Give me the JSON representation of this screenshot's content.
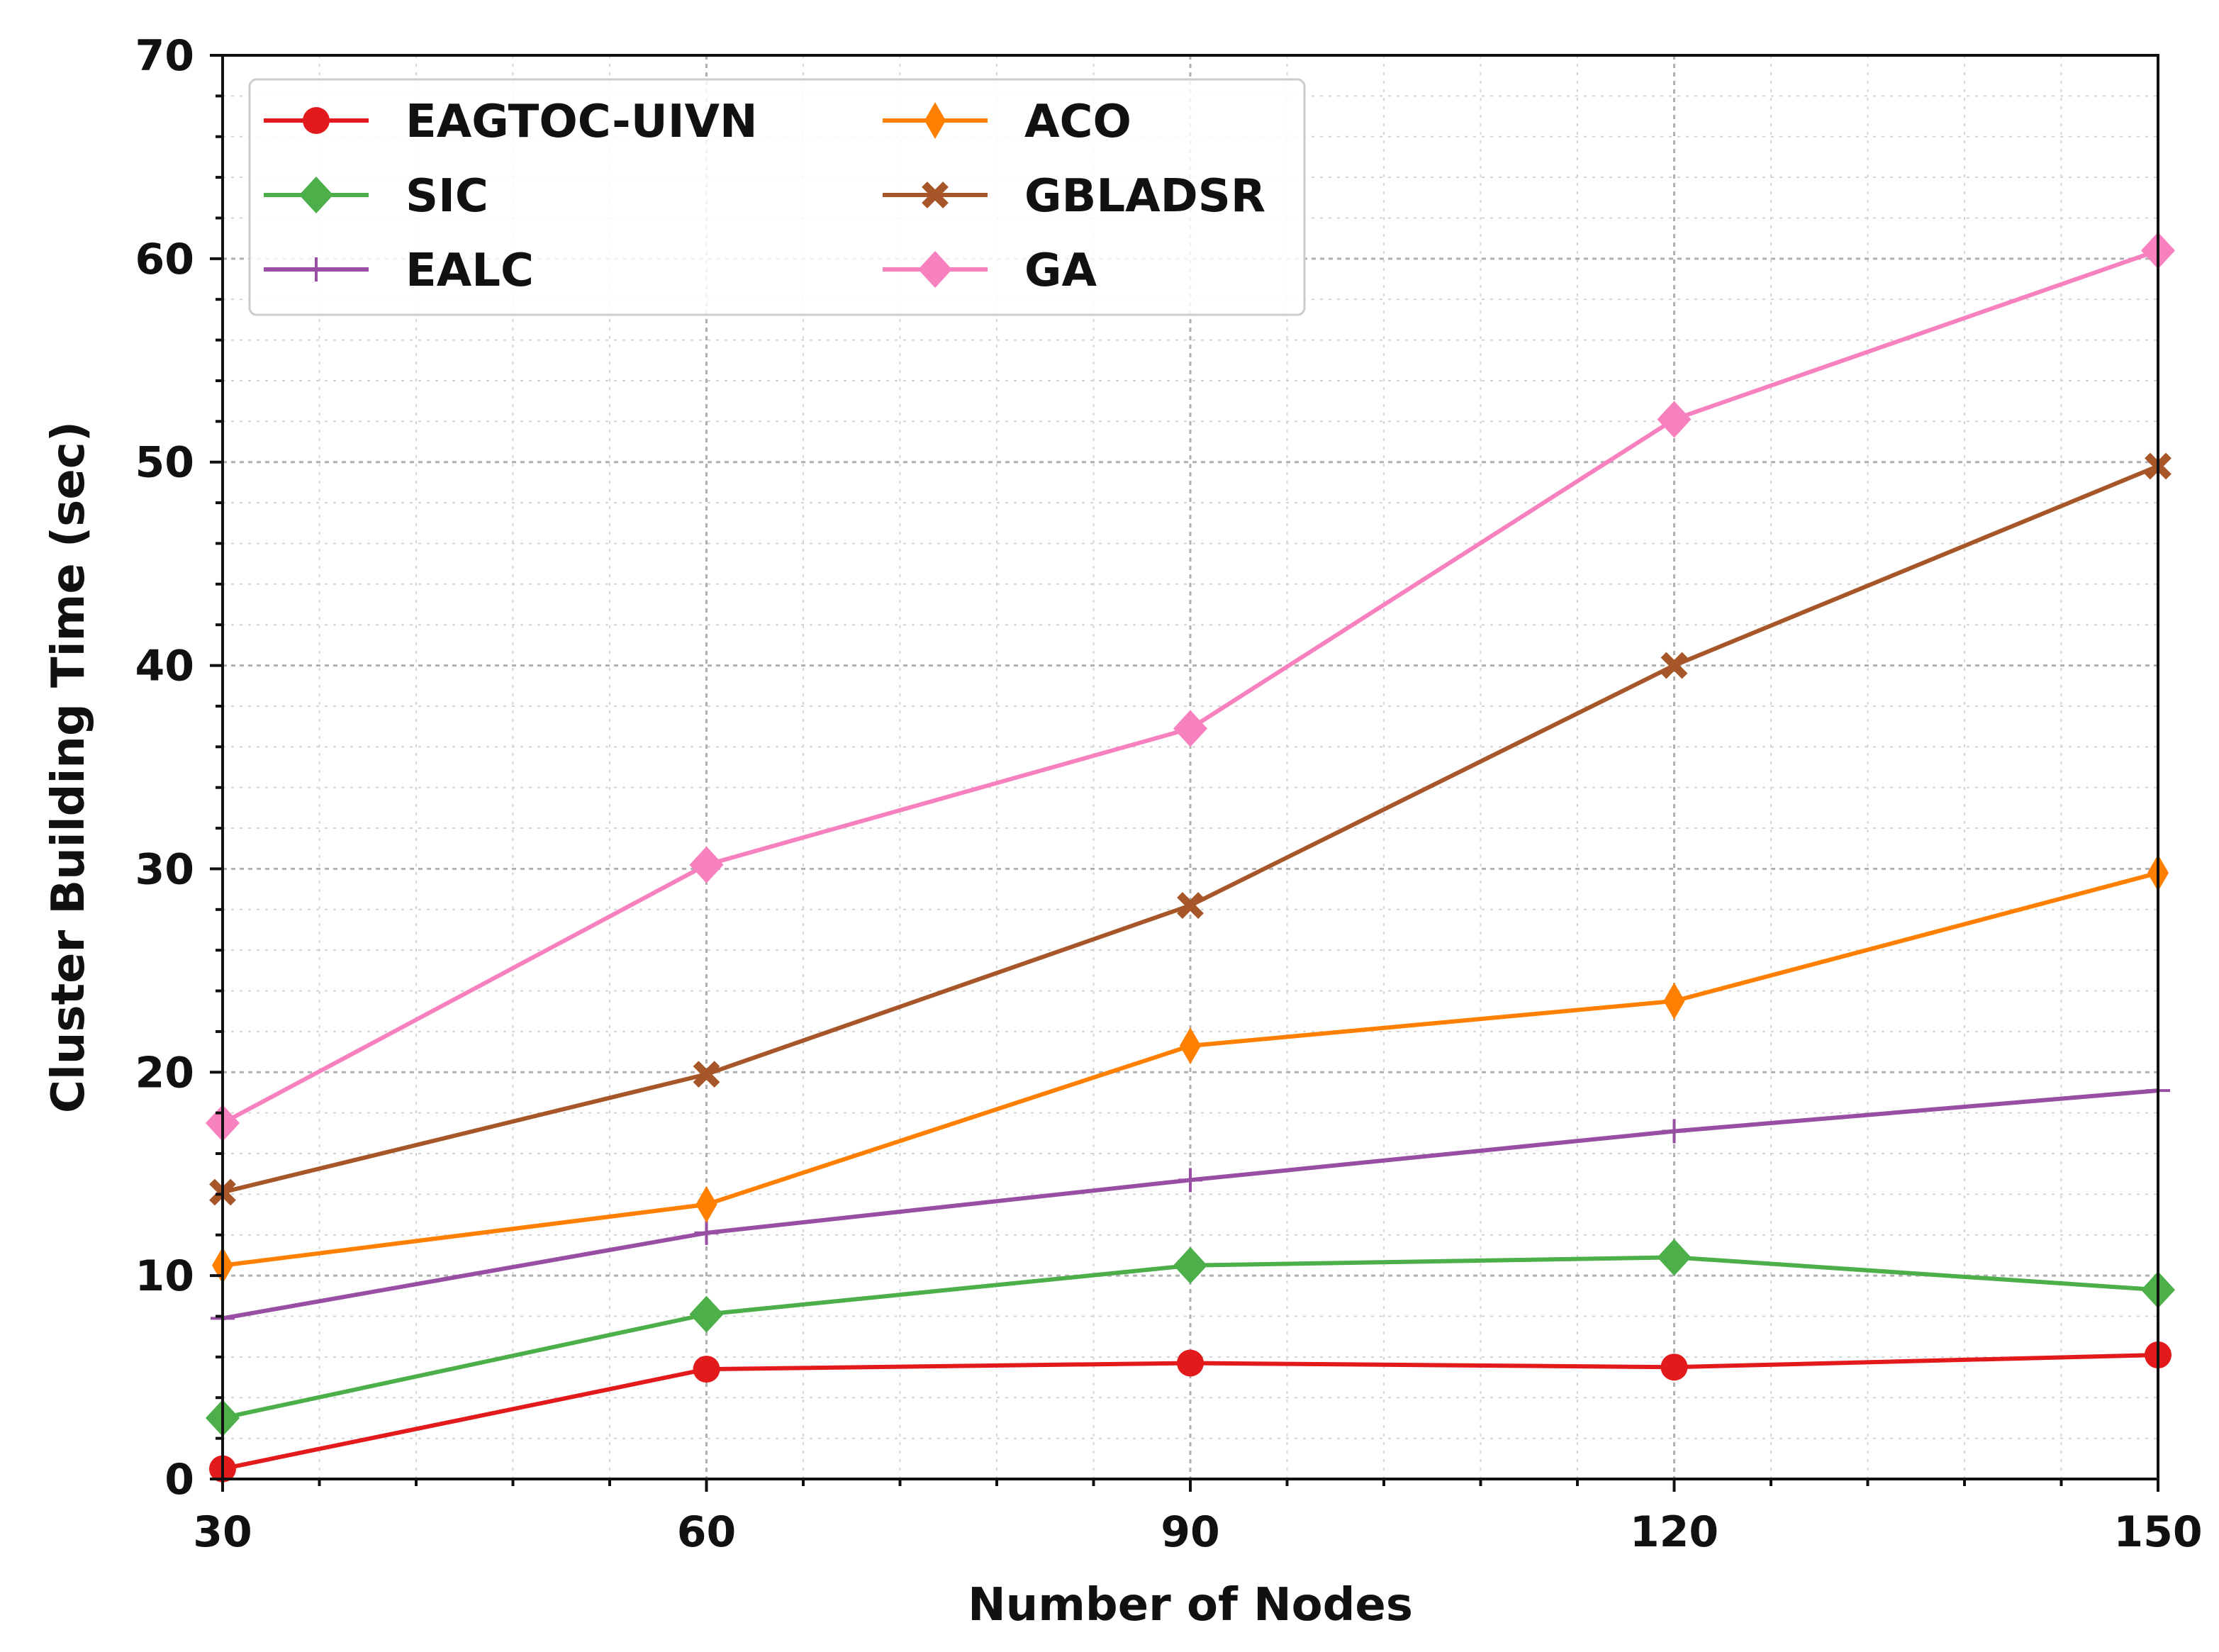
{
  "chart_data": {
    "type": "line",
    "title": "",
    "xlabel": "Number of Nodes",
    "ylabel": "Cluster Building Time (sec)",
    "categories": [
      30,
      60,
      90,
      120,
      150
    ],
    "xlim": [
      30,
      150
    ],
    "ylim": [
      0,
      70
    ],
    "x_ticks": [
      "30",
      "60",
      "90",
      "120",
      "150"
    ],
    "y_ticks": [
      "0",
      "10",
      "20",
      "30",
      "40",
      "50",
      "60",
      "70"
    ],
    "grid": "on (major and minor, dotted)",
    "legend_position": "top-left",
    "legend_columns": 2,
    "series": [
      {
        "name": "EAGTOC-UIVN",
        "color": "#e31a1c",
        "marker": "circle",
        "values": [
          0.5,
          5.4,
          5.7,
          5.5,
          6.1
        ]
      },
      {
        "name": "SIC",
        "color": "#4daf4a",
        "marker": "diamond",
        "values": [
          3.0,
          8.1,
          10.5,
          10.9,
          9.3
        ]
      },
      {
        "name": "EALC",
        "color": "#984ea3",
        "marker": "plus",
        "values": [
          7.9,
          12.1,
          14.7,
          17.1,
          19.1
        ]
      },
      {
        "name": "ACO",
        "color": "#ff7f00",
        "marker": "thin-diamond",
        "values": [
          10.5,
          13.5,
          21.3,
          23.5,
          29.8
        ]
      },
      {
        "name": "GBLADSR",
        "color": "#a65628",
        "marker": "x",
        "values": [
          14.1,
          19.9,
          28.2,
          40.0,
          49.8
        ]
      },
      {
        "name": "GA",
        "color": "#f781bf",
        "marker": "diamond",
        "values": [
          17.5,
          30.2,
          36.9,
          52.1,
          60.4
        ]
      }
    ]
  }
}
